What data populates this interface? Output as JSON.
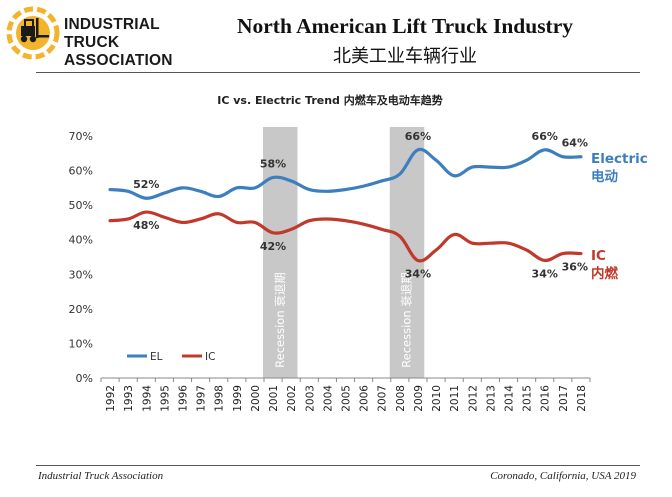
{
  "header": {
    "logo_line1": "INDUSTRIAL",
    "logo_line2": "TRUCK ASSOCIATION",
    "title": "North American Lift Truck Industry",
    "subtitle": "北美工业车辆行业"
  },
  "footer": {
    "left": "Industrial Truck Association",
    "right": "Coronado, California, USA 2019"
  },
  "colors": {
    "electric": "#3d7ebf",
    "ic": "#c0392b",
    "recession": "#c8c8c8",
    "logo": "#f2b42a"
  },
  "chart_data": {
    "type": "line",
    "title": "IC vs. Electric Trend 内燃车及电动车趋势",
    "x": [
      "1992",
      "1993",
      "1994",
      "1995",
      "1996",
      "1997",
      "1998",
      "1999",
      "2000",
      "2001",
      "2002",
      "2003",
      "2004",
      "2005",
      "2006",
      "2007",
      "2008",
      "2009",
      "2010",
      "2011",
      "2012",
      "2013",
      "2014",
      "2015",
      "2016",
      "2017",
      "2018"
    ],
    "series": [
      {
        "name": "EL",
        "label_line1": "Electric",
        "label_line2": "电动",
        "values": [
          54.5,
          54,
          52,
          53.5,
          55,
          54,
          52.5,
          55,
          55,
          58,
          57,
          54.5,
          54,
          54.5,
          55.5,
          57,
          59,
          66,
          63,
          58.5,
          61,
          61,
          61,
          63,
          66,
          64,
          64
        ]
      },
      {
        "name": "IC",
        "label_line1": "IC",
        "label_line2": "内燃",
        "values": [
          45.5,
          46,
          48,
          46.5,
          45,
          46,
          47.5,
          45,
          45,
          42,
          43,
          45.5,
          46,
          45.5,
          44.5,
          43,
          41,
          34,
          37,
          41.5,
          39,
          39,
          39,
          37,
          34,
          36,
          36
        ]
      }
    ],
    "ylim": [
      0,
      70
    ],
    "yticks": [
      "0%",
      "10%",
      "20%",
      "30%",
      "40%",
      "50%",
      "60%",
      "70%"
    ],
    "ytick_values": [
      0,
      10,
      20,
      30,
      40,
      50,
      60,
      70
    ],
    "recessions": [
      {
        "from": "2001",
        "to": "2002",
        "label": "Recession 衰退期"
      },
      {
        "from": "2008",
        "to": "2009",
        "label": "Recession 衰退期"
      }
    ],
    "annotations": [
      {
        "series": 0,
        "year": "1994",
        "text": "52%",
        "pos": "above"
      },
      {
        "series": 1,
        "year": "1994",
        "text": "48%",
        "pos": "below"
      },
      {
        "series": 0,
        "year": "2001",
        "text": "58%",
        "pos": "above"
      },
      {
        "series": 1,
        "year": "2001",
        "text": "42%",
        "pos": "below"
      },
      {
        "series": 0,
        "year": "2009",
        "text": "66%",
        "pos": "above"
      },
      {
        "series": 1,
        "year": "2009",
        "text": "34%",
        "pos": "below"
      },
      {
        "series": 0,
        "year": "2016",
        "text": "66%",
        "pos": "above"
      },
      {
        "series": 1,
        "year": "2016",
        "text": "34%",
        "pos": "below"
      },
      {
        "series": 0,
        "year": "2017",
        "text": "64%",
        "pos": "above-right"
      },
      {
        "series": 1,
        "year": "2017",
        "text": "36%",
        "pos": "below-right"
      }
    ],
    "legend": "bottom-left",
    "grid": false
  }
}
